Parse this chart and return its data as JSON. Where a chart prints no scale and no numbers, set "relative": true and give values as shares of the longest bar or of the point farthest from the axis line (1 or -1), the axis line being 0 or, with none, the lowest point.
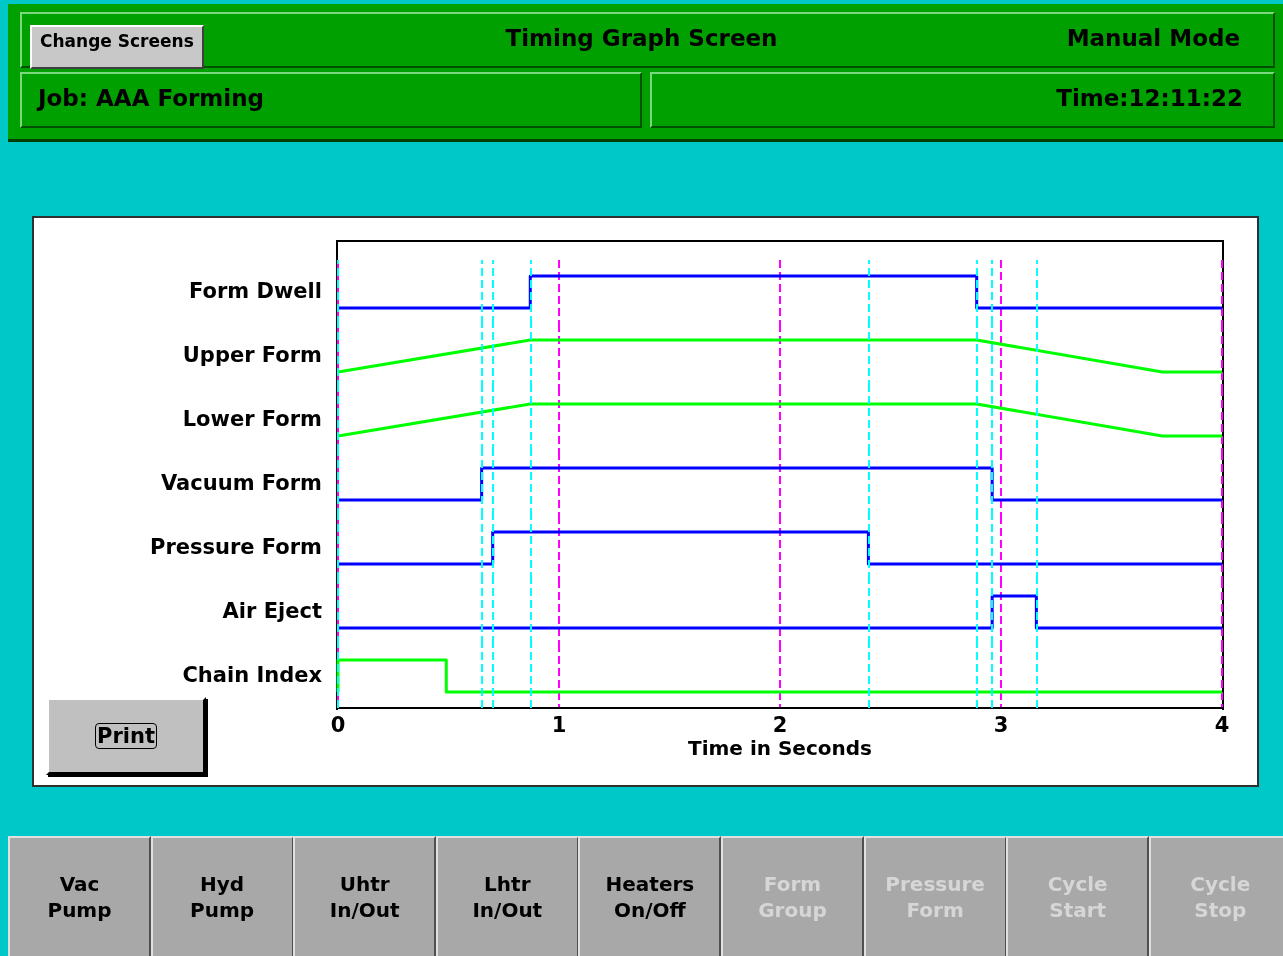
{
  "chart_data": [
    {
      "type": "other",
      "title": "Timing Graph Screen",
      "annotations": [
        "Change Screens",
        "Manual Mode",
        "Job: AAA Forming",
        "Time:12:11:22",
        "Print",
        "Vac Pump",
        "Hyd Pump",
        "Uhtr In/Out",
        "Lhtr In/Out",
        "Heaters On/Off",
        "Form Group",
        "Pressure Form",
        "Cycle Start",
        "Cycle Stop"
      ]
    },
    {
      "type": "line",
      "ylabel": "Form Dwell",
      "relative": true,
      "marker": "none",
      "color": "#0000ff",
      "x": [
        0,
        0.87,
        0.87,
        2.89,
        2.89,
        4
      ],
      "values": [
        0,
        0,
        1,
        1,
        0,
        0
      ],
      "xlim": [
        0,
        4
      ],
      "xticks": [
        0,
        1,
        2,
        3,
        4
      ],
      "grid": "x",
      "tick_labels": false,
      "ref_lines": [
        {
          "axis": "x",
          "value": 0,
          "color": "#00ffff",
          "line_style": "dashed"
        },
        {
          "axis": "x",
          "value": 0.65,
          "color": "#00ffff",
          "line_style": "dashed"
        },
        {
          "axis": "x",
          "value": 0.7,
          "color": "#00ffff",
          "line_style": "dashed"
        },
        {
          "axis": "x",
          "value": 0.87,
          "color": "#00ffff",
          "line_style": "dashed"
        },
        {
          "axis": "x",
          "value": 2.4,
          "color": "#00ffff",
          "line_style": "dashed"
        },
        {
          "axis": "x",
          "value": 2.89,
          "color": "#00ffff",
          "line_style": "dashed"
        },
        {
          "axis": "x",
          "value": 2.96,
          "color": "#00ffff",
          "line_style": "dashed"
        },
        {
          "axis": "x",
          "value": 3.16,
          "color": "#00ffff",
          "line_style": "dashed"
        }
      ]
    },
    {
      "type": "line",
      "ylabel": "Upper Form",
      "relative": true,
      "marker": "none",
      "color": "#00ff00",
      "x": [
        0,
        0.87,
        2.89,
        3.73,
        4
      ],
      "values": [
        0,
        1,
        1,
        0,
        0
      ],
      "xlim": [
        0,
        4
      ],
      "xticks": [
        0,
        1,
        2,
        3,
        4
      ],
      "grid": "x",
      "tick_labels": false,
      "ref_lines": [
        {
          "axis": "x",
          "value": 0,
          "color": "#00ffff",
          "line_style": "dashed"
        },
        {
          "axis": "x",
          "value": 0.65,
          "color": "#00ffff",
          "line_style": "dashed"
        },
        {
          "axis": "x",
          "value": 0.7,
          "color": "#00ffff",
          "line_style": "dashed"
        },
        {
          "axis": "x",
          "value": 0.87,
          "color": "#00ffff",
          "line_style": "dashed"
        },
        {
          "axis": "x",
          "value": 2.4,
          "color": "#00ffff",
          "line_style": "dashed"
        },
        {
          "axis": "x",
          "value": 2.89,
          "color": "#00ffff",
          "line_style": "dashed"
        },
        {
          "axis": "x",
          "value": 2.96,
          "color": "#00ffff",
          "line_style": "dashed"
        },
        {
          "axis": "x",
          "value": 3.16,
          "color": "#00ffff",
          "line_style": "dashed"
        }
      ]
    },
    {
      "type": "line",
      "ylabel": "Lower Form",
      "relative": true,
      "marker": "none",
      "color": "#00ff00",
      "x": [
        0,
        0.87,
        2.89,
        3.73,
        4
      ],
      "values": [
        0,
        1,
        1,
        0,
        0
      ],
      "xlim": [
        0,
        4
      ],
      "xticks": [
        0,
        1,
        2,
        3,
        4
      ],
      "grid": "x",
      "tick_labels": false,
      "ref_lines": [
        {
          "axis": "x",
          "value": 0,
          "color": "#00ffff",
          "line_style": "dashed"
        },
        {
          "axis": "x",
          "value": 0.65,
          "color": "#00ffff",
          "line_style": "dashed"
        },
        {
          "axis": "x",
          "value": 0.7,
          "color": "#00ffff",
          "line_style": "dashed"
        },
        {
          "axis": "x",
          "value": 0.87,
          "color": "#00ffff",
          "line_style": "dashed"
        },
        {
          "axis": "x",
          "value": 2.4,
          "color": "#00ffff",
          "line_style": "dashed"
        },
        {
          "axis": "x",
          "value": 2.89,
          "color": "#00ffff",
          "line_style": "dashed"
        },
        {
          "axis": "x",
          "value": 2.96,
          "color": "#00ffff",
          "line_style": "dashed"
        },
        {
          "axis": "x",
          "value": 3.16,
          "color": "#00ffff",
          "line_style": "dashed"
        }
      ]
    },
    {
      "type": "line",
      "ylabel": "Vacuum Form",
      "relative": true,
      "marker": "none",
      "color": "#0000ff",
      "x": [
        0,
        0.65,
        0.65,
        2.96,
        2.96,
        4
      ],
      "values": [
        0,
        0,
        1,
        1,
        0,
        0
      ],
      "xlim": [
        0,
        4
      ],
      "xticks": [
        0,
        1,
        2,
        3,
        4
      ],
      "grid": "x",
      "tick_labels": false,
      "ref_lines": [
        {
          "axis": "x",
          "value": 0,
          "color": "#00ffff",
          "line_style": "dashed"
        },
        {
          "axis": "x",
          "value": 0.65,
          "color": "#00ffff",
          "line_style": "dashed"
        },
        {
          "axis": "x",
          "value": 0.7,
          "color": "#00ffff",
          "line_style": "dashed"
        },
        {
          "axis": "x",
          "value": 0.87,
          "color": "#00ffff",
          "line_style": "dashed"
        },
        {
          "axis": "x",
          "value": 2.4,
          "color": "#00ffff",
          "line_style": "dashed"
        },
        {
          "axis": "x",
          "value": 2.89,
          "color": "#00ffff",
          "line_style": "dashed"
        },
        {
          "axis": "x",
          "value": 2.96,
          "color": "#00ffff",
          "line_style": "dashed"
        },
        {
          "axis": "x",
          "value": 3.16,
          "color": "#00ffff",
          "line_style": "dashed"
        }
      ]
    },
    {
      "type": "line",
      "ylabel": "Pressure Form",
      "relative": true,
      "marker": "none",
      "color": "#0000ff",
      "x": [
        0,
        0.7,
        0.7,
        2.4,
        2.4,
        4
      ],
      "values": [
        0,
        0,
        1,
        1,
        0,
        0
      ],
      "xlim": [
        0,
        4
      ],
      "xticks": [
        0,
        1,
        2,
        3,
        4
      ],
      "grid": "x",
      "tick_labels": false,
      "ref_lines": [
        {
          "axis": "x",
          "value": 0,
          "color": "#00ffff",
          "line_style": "dashed"
        },
        {
          "axis": "x",
          "value": 0.65,
          "color": "#00ffff",
          "line_style": "dashed"
        },
        {
          "axis": "x",
          "value": 0.7,
          "color": "#00ffff",
          "line_style": "dashed"
        },
        {
          "axis": "x",
          "value": 0.87,
          "color": "#00ffff",
          "line_style": "dashed"
        },
        {
          "axis": "x",
          "value": 2.4,
          "color": "#00ffff",
          "line_style": "dashed"
        },
        {
          "axis": "x",
          "value": 2.89,
          "color": "#00ffff",
          "line_style": "dashed"
        },
        {
          "axis": "x",
          "value": 2.96,
          "color": "#00ffff",
          "line_style": "dashed"
        },
        {
          "axis": "x",
          "value": 3.16,
          "color": "#00ffff",
          "line_style": "dashed"
        }
      ]
    },
    {
      "type": "line",
      "ylabel": "Air Eject",
      "relative": true,
      "marker": "none",
      "color": "#0000ff",
      "x": [
        0,
        2.96,
        2.96,
        3.16,
        3.16,
        4
      ],
      "values": [
        0,
        0,
        1,
        1,
        0,
        0
      ],
      "xlim": [
        0,
        4
      ],
      "xticks": [
        0,
        1,
        2,
        3,
        4
      ],
      "grid": "x",
      "tick_labels": false,
      "ref_lines": [
        {
          "axis": "x",
          "value": 0,
          "color": "#00ffff",
          "line_style": "dashed"
        },
        {
          "axis": "x",
          "value": 0.65,
          "color": "#00ffff",
          "line_style": "dashed"
        },
        {
          "axis": "x",
          "value": 0.7,
          "color": "#00ffff",
          "line_style": "dashed"
        },
        {
          "axis": "x",
          "value": 0.87,
          "color": "#00ffff",
          "line_style": "dashed"
        },
        {
          "axis": "x",
          "value": 2.4,
          "color": "#00ffff",
          "line_style": "dashed"
        },
        {
          "axis": "x",
          "value": 2.89,
          "color": "#00ffff",
          "line_style": "dashed"
        },
        {
          "axis": "x",
          "value": 2.96,
          "color": "#00ffff",
          "line_style": "dashed"
        },
        {
          "axis": "x",
          "value": 3.16,
          "color": "#00ffff",
          "line_style": "dashed"
        }
      ]
    },
    {
      "type": "line",
      "ylabel": "Chain Index",
      "xlabel": "Time in Seconds",
      "relative": true,
      "marker": "none",
      "color": "#00ff00",
      "x": [
        0,
        0,
        0.49,
        0.49,
        4
      ],
      "values": [
        0,
        1,
        1,
        0,
        0
      ],
      "xlim": [
        0,
        4
      ],
      "xticks": [
        0,
        1,
        2,
        3,
        4
      ],
      "grid": "x",
      "tick_labels": "x",
      "ref_lines": [
        {
          "axis": "x",
          "value": 0,
          "color": "#00ffff",
          "line_style": "dashed"
        },
        {
          "axis": "x",
          "value": 0.65,
          "color": "#00ffff",
          "line_style": "dashed"
        },
        {
          "axis": "x",
          "value": 0.7,
          "color": "#00ffff",
          "line_style": "dashed"
        },
        {
          "axis": "x",
          "value": 0.87,
          "color": "#00ffff",
          "line_style": "dashed"
        },
        {
          "axis": "x",
          "value": 2.4,
          "color": "#00ffff",
          "line_style": "dashed"
        },
        {
          "axis": "x",
          "value": 2.89,
          "color": "#00ffff",
          "line_style": "dashed"
        },
        {
          "axis": "x",
          "value": 2.96,
          "color": "#00ffff",
          "line_style": "dashed"
        },
        {
          "axis": "x",
          "value": 3.16,
          "color": "#00ffff",
          "line_style": "dashed"
        }
      ]
    }
  ]
}
